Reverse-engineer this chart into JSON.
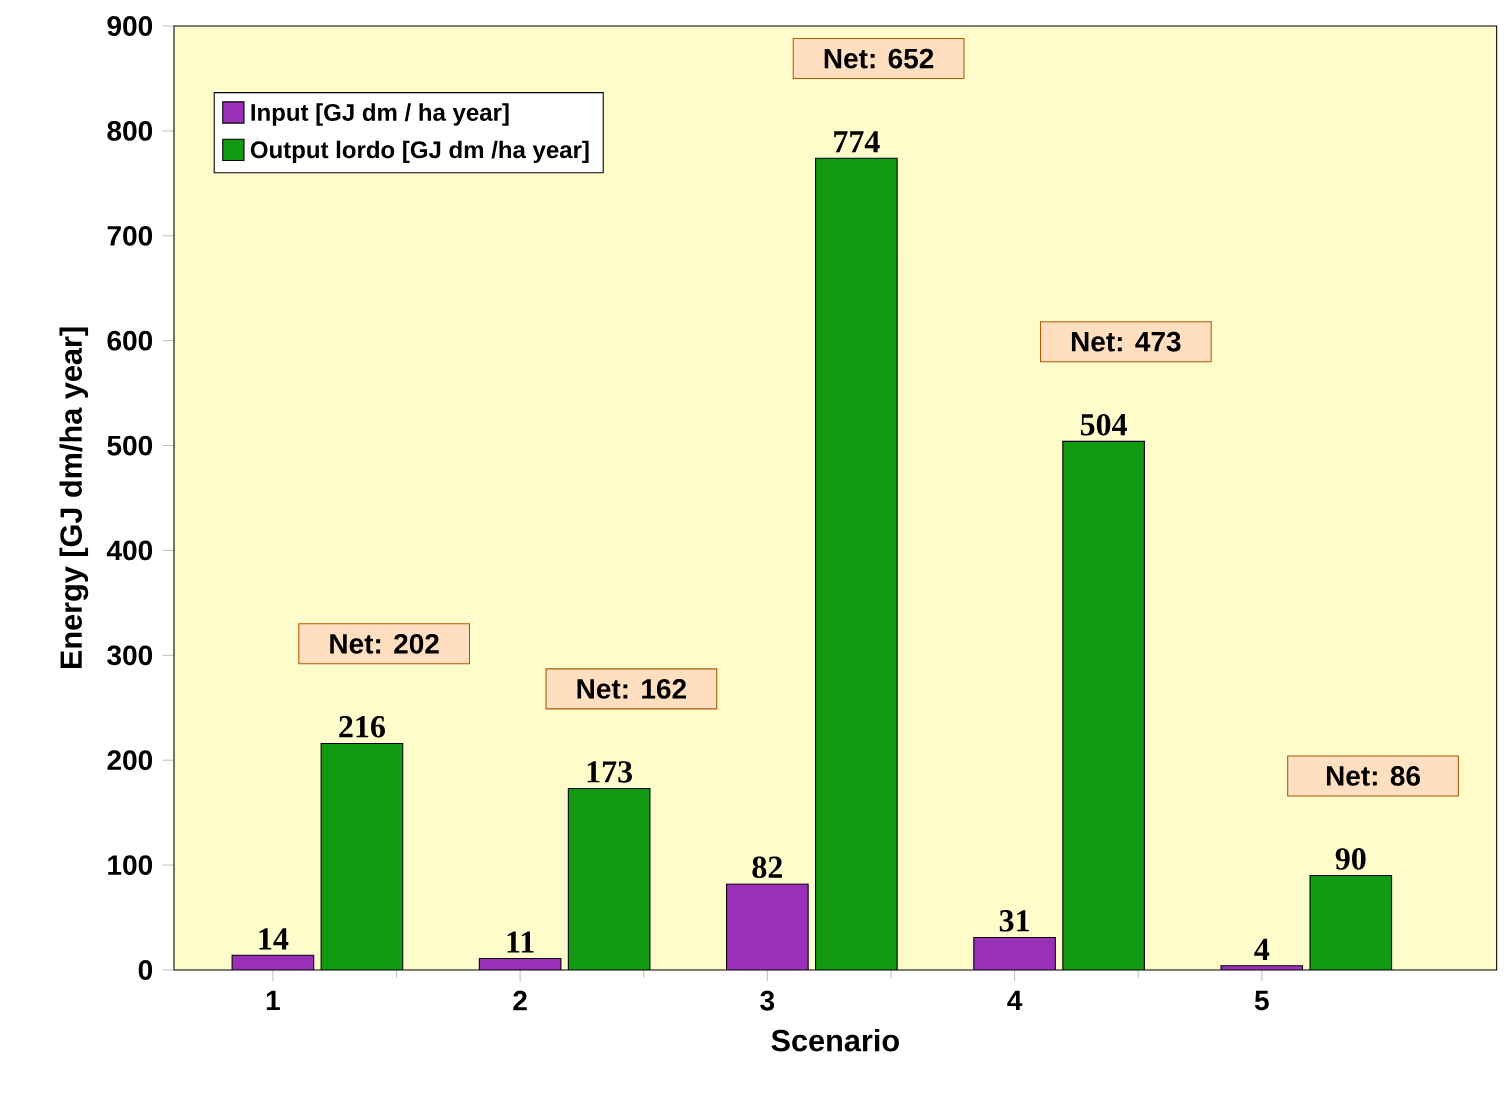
{
  "chart_data": {
    "type": "bar",
    "xlabel": "Scenario",
    "ylabel": "Energy [GJ dm/ha year]",
    "categories": [
      "1",
      "2",
      "3",
      "4",
      "5"
    ],
    "series": [
      {
        "name": "Input [GJ dm / ha year]",
        "color": "#9b30b8",
        "values": [
          14,
          11,
          82,
          31,
          4
        ]
      },
      {
        "name": "Output lordo [GJ dm /ha year]",
        "color": "#129a12",
        "values": [
          216,
          173,
          774,
          504,
          90
        ]
      }
    ],
    "ylim": [
      0,
      900
    ],
    "yticks": [
      0,
      100,
      200,
      300,
      400,
      500,
      600,
      700,
      800,
      900
    ],
    "legend": "top left",
    "data_labels": true,
    "annotations": [
      "Net: 202",
      "Net: 162",
      "Net: 652",
      "Net: 473",
      "Net: 86"
    ]
  }
}
